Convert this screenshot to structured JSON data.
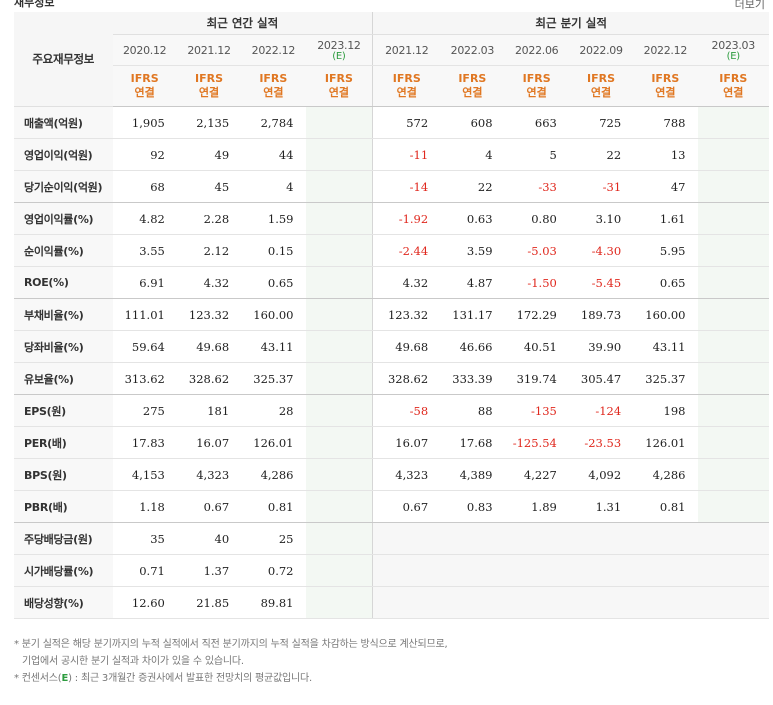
{
  "header": {
    "title": "재무정보",
    "more": "더보기"
  },
  "table": {
    "corner_label": "주요재무정보",
    "annual_group": "최근 연간 실적",
    "quarter_group": "최근 분기 실적",
    "annual_periods": [
      {
        "date": "2020.12",
        "est": "",
        "acct": "IFRS",
        "acct2": "연결"
      },
      {
        "date": "2021.12",
        "est": "",
        "acct": "IFRS",
        "acct2": "연결"
      },
      {
        "date": "2022.12",
        "est": "",
        "acct": "IFRS",
        "acct2": "연결"
      },
      {
        "date": "2023.12",
        "est": "(E)",
        "acct": "IFRS",
        "acct2": "연결"
      }
    ],
    "quarter_periods": [
      {
        "date": "2021.12",
        "est": "",
        "acct": "IFRS",
        "acct2": "연결"
      },
      {
        "date": "2022.03",
        "est": "",
        "acct": "IFRS",
        "acct2": "연결"
      },
      {
        "date": "2022.06",
        "est": "",
        "acct": "IFRS",
        "acct2": "연결"
      },
      {
        "date": "2022.09",
        "est": "",
        "acct": "IFRS",
        "acct2": "연결"
      },
      {
        "date": "2022.12",
        "est": "",
        "acct": "IFRS",
        "acct2": "연결"
      },
      {
        "date": "2023.03",
        "est": "(E)",
        "acct": "IFRS",
        "acct2": "연결"
      }
    ],
    "rows": [
      {
        "label": "매출액(억원)",
        "cells": [
          "1,905",
          "2,135",
          "2,784",
          "",
          "572",
          "608",
          "663",
          "725",
          "788",
          ""
        ]
      },
      {
        "label": "영업이익(억원)",
        "cells": [
          "92",
          "49",
          "44",
          "",
          "-11",
          "4",
          "5",
          "22",
          "13",
          ""
        ]
      },
      {
        "label": "당기순이익(억원)",
        "cells": [
          "68",
          "45",
          "4",
          "",
          "-14",
          "22",
          "-33",
          "-31",
          "47",
          ""
        ]
      },
      {
        "label": "영업이익률(%)",
        "cells": [
          "4.82",
          "2.28",
          "1.59",
          "",
          "-1.92",
          "0.63",
          "0.80",
          "3.10",
          "1.61",
          ""
        ]
      },
      {
        "label": "순이익률(%)",
        "cells": [
          "3.55",
          "2.12",
          "0.15",
          "",
          "-2.44",
          "3.59",
          "-5.03",
          "-4.30",
          "5.95",
          ""
        ]
      },
      {
        "label": "ROE(%)",
        "cells": [
          "6.91",
          "4.32",
          "0.65",
          "",
          "4.32",
          "4.87",
          "-1.50",
          "-5.45",
          "0.65",
          ""
        ]
      },
      {
        "label": "부채비율(%)",
        "cells": [
          "111.01",
          "123.32",
          "160.00",
          "",
          "123.32",
          "131.17",
          "172.29",
          "189.73",
          "160.00",
          ""
        ]
      },
      {
        "label": "당좌비율(%)",
        "cells": [
          "59.64",
          "49.68",
          "43.11",
          "",
          "49.68",
          "46.66",
          "40.51",
          "39.90",
          "43.11",
          ""
        ]
      },
      {
        "label": "유보율(%)",
        "cells": [
          "313.62",
          "328.62",
          "325.37",
          "",
          "328.62",
          "333.39",
          "319.74",
          "305.47",
          "325.37",
          ""
        ]
      },
      {
        "label": "EPS(원)",
        "cells": [
          "275",
          "181",
          "28",
          "",
          "-58",
          "88",
          "-135",
          "-124",
          "198",
          ""
        ]
      },
      {
        "label": "PER(배)",
        "cells": [
          "17.83",
          "16.07",
          "126.01",
          "",
          "16.07",
          "17.68",
          "-125.54",
          "-23.53",
          "126.01",
          ""
        ]
      },
      {
        "label": "BPS(원)",
        "cells": [
          "4,153",
          "4,323",
          "4,286",
          "",
          "4,323",
          "4,389",
          "4,227",
          "4,092",
          "4,286",
          ""
        ]
      },
      {
        "label": "PBR(배)",
        "cells": [
          "1.18",
          "0.67",
          "0.81",
          "",
          "0.67",
          "0.83",
          "1.89",
          "1.31",
          "0.81",
          ""
        ]
      },
      {
        "label": "주당배당금(원)",
        "cells": [
          "35",
          "40",
          "25",
          "",
          "",
          "",
          "",
          "",
          "",
          ""
        ]
      },
      {
        "label": "시가배당률(%)",
        "cells": [
          "0.71",
          "1.37",
          "0.72",
          "",
          "",
          "",
          "",
          "",
          "",
          ""
        ]
      },
      {
        "label": "배당성향(%)",
        "cells": [
          "12.60",
          "21.85",
          "89.81",
          "",
          "",
          "",
          "",
          "",
          "",
          ""
        ]
      }
    ]
  },
  "notes": {
    "line1": "* 분기 실적은 해당 분기까지의 누적 실적에서 직전 분기까지의 누적 실적을 차감하는 방식으로 계산되므로,",
    "line2": "기업에서 공시한 분기 실적과 차이가 있을 수 있습니다.",
    "line3_prefix": "* 컨센서스(",
    "line3_em": "E",
    "line3_suffix": ") : 최근 3개월간 증권사에서 발표한 전망치의 평균값입니다."
  }
}
